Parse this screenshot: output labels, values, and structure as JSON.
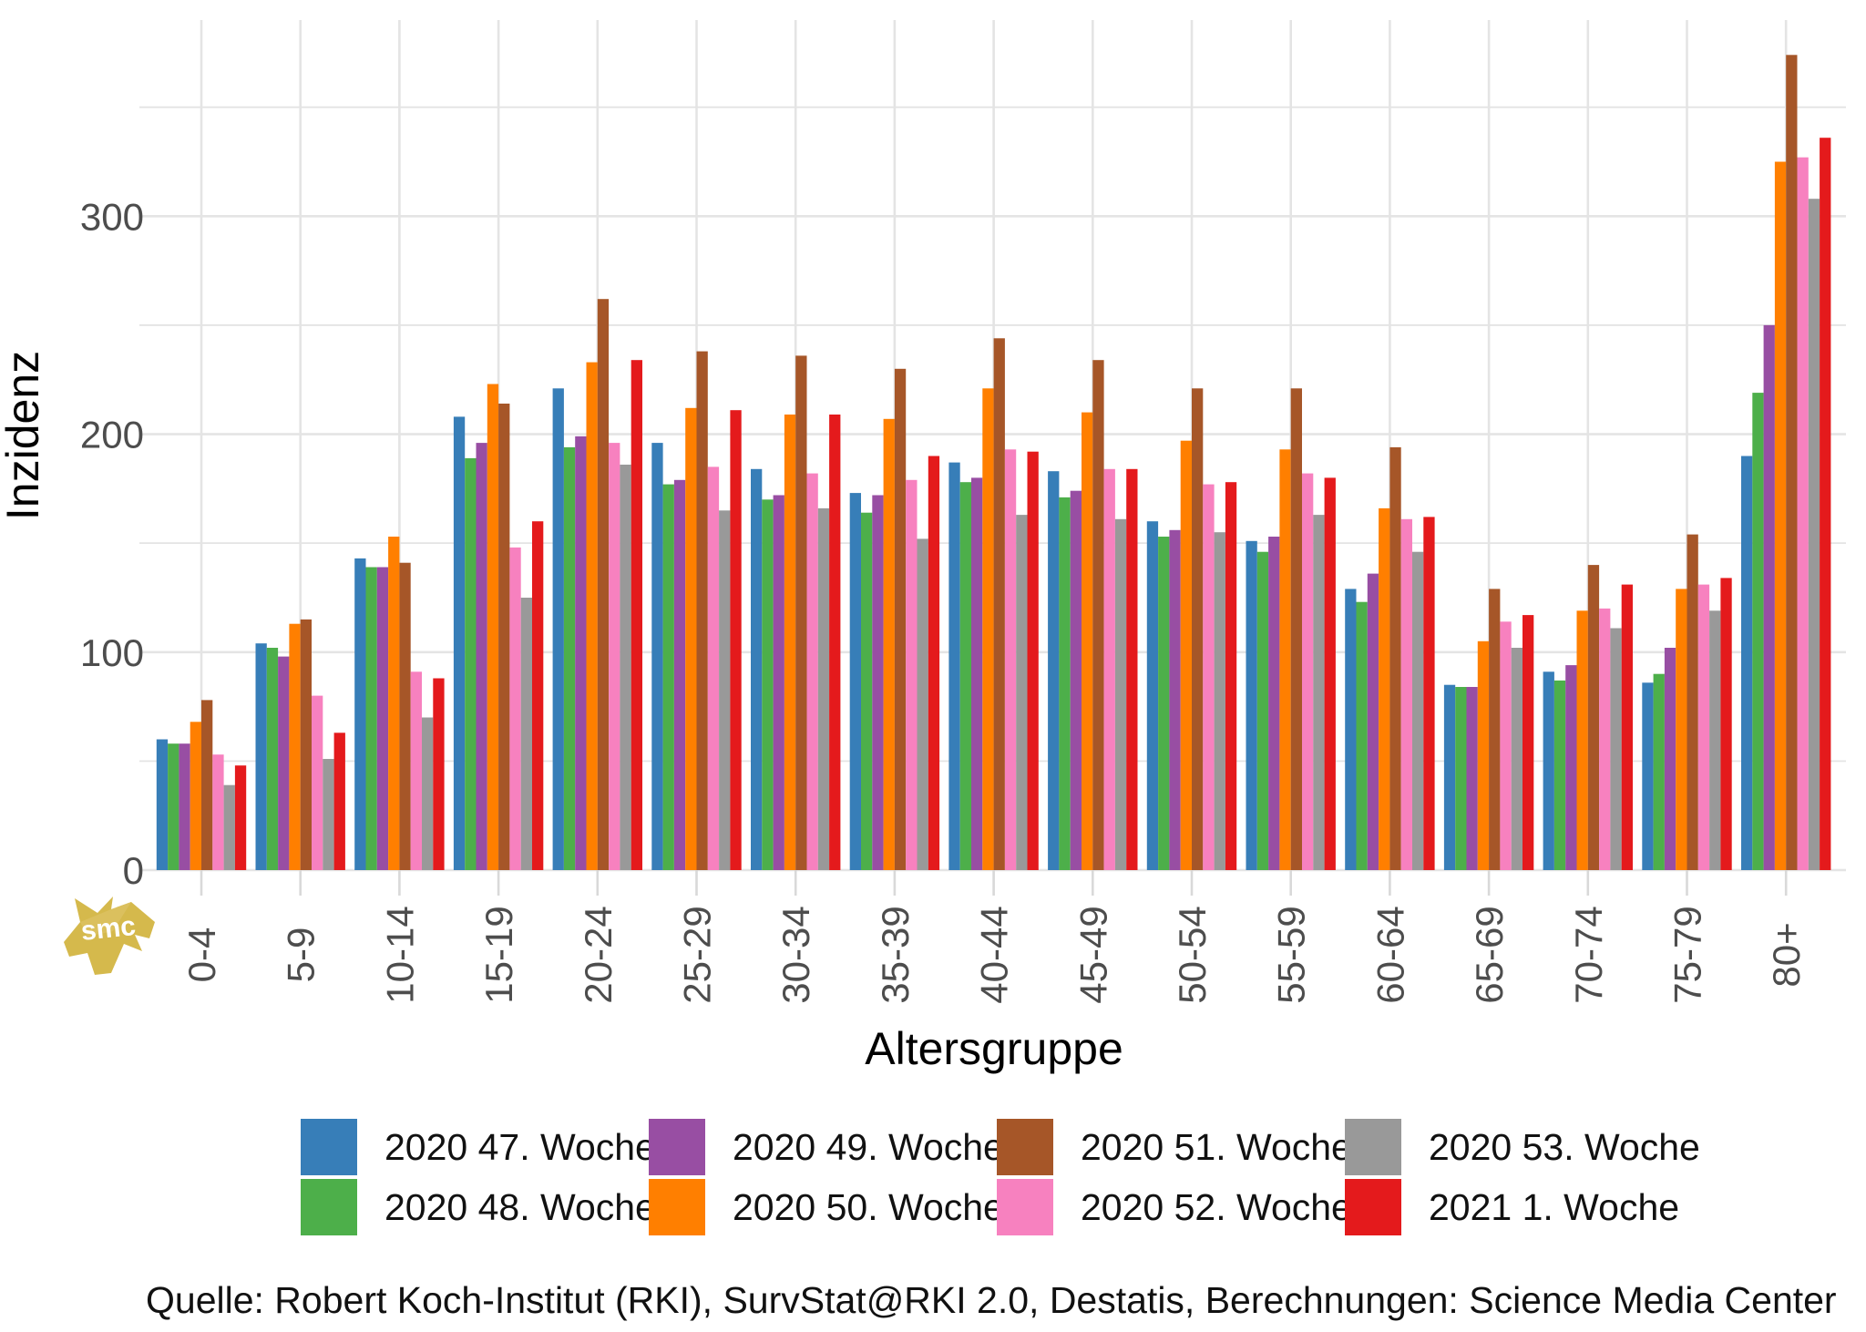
{
  "chart_data": {
    "type": "bar",
    "title": "",
    "ylabel": "Inzidenz",
    "xlabel": "Altersgruppe",
    "categories": [
      "0-4",
      "5-9",
      "10-14",
      "15-19",
      "20-24",
      "25-29",
      "30-34",
      "35-39",
      "40-44",
      "45-49",
      "50-54",
      "55-59",
      "60-64",
      "65-69",
      "70-74",
      "75-79",
      "80+"
    ],
    "series": [
      {
        "name": "2020 47. Woche",
        "color": "#377eb8",
        "values": [
          60,
          104,
          143,
          208,
          221,
          196,
          184,
          173,
          187,
          183,
          160,
          151,
          129,
          85,
          91,
          86,
          190
        ]
      },
      {
        "name": "2020 48. Woche",
        "color": "#4daf4a",
        "values": [
          58,
          102,
          139,
          189,
          194,
          177,
          170,
          164,
          178,
          171,
          153,
          146,
          123,
          84,
          87,
          90,
          219
        ]
      },
      {
        "name": "2020 49. Woche",
        "color": "#984ea3",
        "values": [
          58,
          98,
          139,
          196,
          199,
          179,
          172,
          172,
          180,
          174,
          156,
          153,
          136,
          84,
          94,
          102,
          250
        ]
      },
      {
        "name": "2020 50. Woche",
        "color": "#ff7f00",
        "values": [
          68,
          113,
          153,
          223,
          233,
          212,
          209,
          207,
          221,
          210,
          197,
          193,
          166,
          105,
          119,
          129,
          325
        ]
      },
      {
        "name": "2020 51. Woche",
        "color": "#a65628",
        "values": [
          78,
          115,
          141,
          214,
          262,
          238,
          236,
          230,
          244,
          234,
          221,
          221,
          194,
          129,
          140,
          154,
          374
        ]
      },
      {
        "name": "2020 52. Woche",
        "color": "#f781bf",
        "values": [
          53,
          80,
          91,
          148,
          196,
          185,
          182,
          179,
          193,
          184,
          177,
          182,
          161,
          114,
          120,
          131,
          327
        ]
      },
      {
        "name": "2020 53. Woche",
        "color": "#999999",
        "values": [
          39,
          51,
          70,
          125,
          186,
          165,
          166,
          152,
          163,
          161,
          155,
          163,
          146,
          102,
          111,
          119,
          308
        ]
      },
      {
        "name": "2021 1. Woche",
        "color": "#e41a1c",
        "values": [
          48,
          63,
          88,
          160,
          234,
          211,
          209,
          190,
          192,
          184,
          178,
          180,
          162,
          117,
          131,
          134,
          336
        ]
      }
    ],
    "y_ticks": [
      0,
      100,
      200,
      300
    ],
    "ylim": [
      0,
      390
    ],
    "grid": {
      "horizontal_step": 50,
      "vertical": "category-centers",
      "color": "#e4e4e4"
    },
    "legend_position": "bottom"
  },
  "footer": {
    "source": "Quelle: Robert Koch-Institut (RKI), SurvStat@RKI 2.0, Destatis, Berechnungen: Science Media Center"
  },
  "logo": {
    "text": "smc",
    "color": "#d5b94c"
  }
}
